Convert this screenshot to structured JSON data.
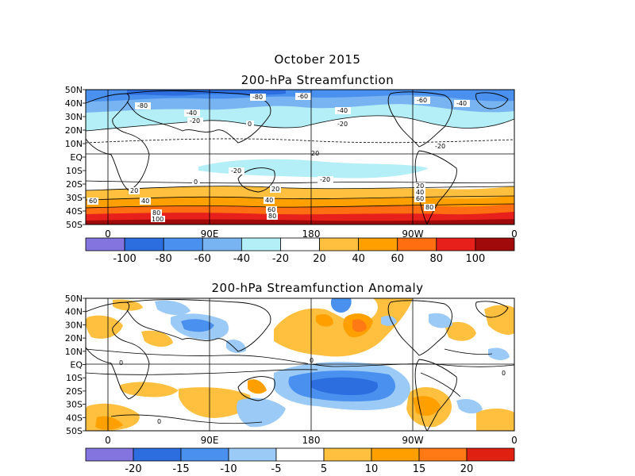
{
  "header": {
    "date": "October 2015",
    "title_top": "200-hPa Streamfunction",
    "title_bottom": "200-hPa Streamfunction Anomaly"
  },
  "chart_data": [
    {
      "type": "heatmap",
      "title": "200-hPa Streamfunction",
      "lat_ticks": [
        "50N",
        "40N",
        "30N",
        "20N",
        "10N",
        "EQ",
        "10S",
        "20S",
        "30S",
        "40S",
        "50S"
      ],
      "lon_ticks": [
        "0",
        "90E",
        "180",
        "90W",
        "0"
      ],
      "colorbar": {
        "labels": [
          "-100",
          "-80",
          "-60",
          "-40",
          "-20",
          "20",
          "40",
          "60",
          "80",
          "100"
        ],
        "colors": [
          "#8474e0",
          "#2c6ee0",
          "#4a90ee",
          "#78b4f2",
          "#b4eef6",
          "#ffffff",
          "#ffc040",
          "#ffa000",
          "#ff6e10",
          "#e8201c",
          "#a00a0a"
        ]
      },
      "contour_labels": [
        "-80",
        "-60",
        "-40",
        "-20",
        "0",
        "20",
        "40",
        "60",
        "80",
        "100"
      ]
    },
    {
      "type": "heatmap",
      "title": "200-hPa Streamfunction Anomaly",
      "lat_ticks": [
        "50N",
        "40N",
        "30N",
        "20N",
        "10N",
        "EQ",
        "10S",
        "20S",
        "30S",
        "40S",
        "50S"
      ],
      "lon_ticks": [
        "0",
        "90E",
        "180",
        "90W",
        "0"
      ],
      "colorbar": {
        "labels": [
          "-20",
          "-15",
          "-10",
          "-5",
          "5",
          "10",
          "15",
          "20"
        ],
        "colors": [
          "#8474e0",
          "#2c6ee0",
          "#4a90ee",
          "#9ccaf6",
          "#ffffff",
          "#ffc040",
          "#ffa000",
          "#ff7a14",
          "#e02010"
        ]
      },
      "contour_labels": [
        "0"
      ]
    }
  ]
}
